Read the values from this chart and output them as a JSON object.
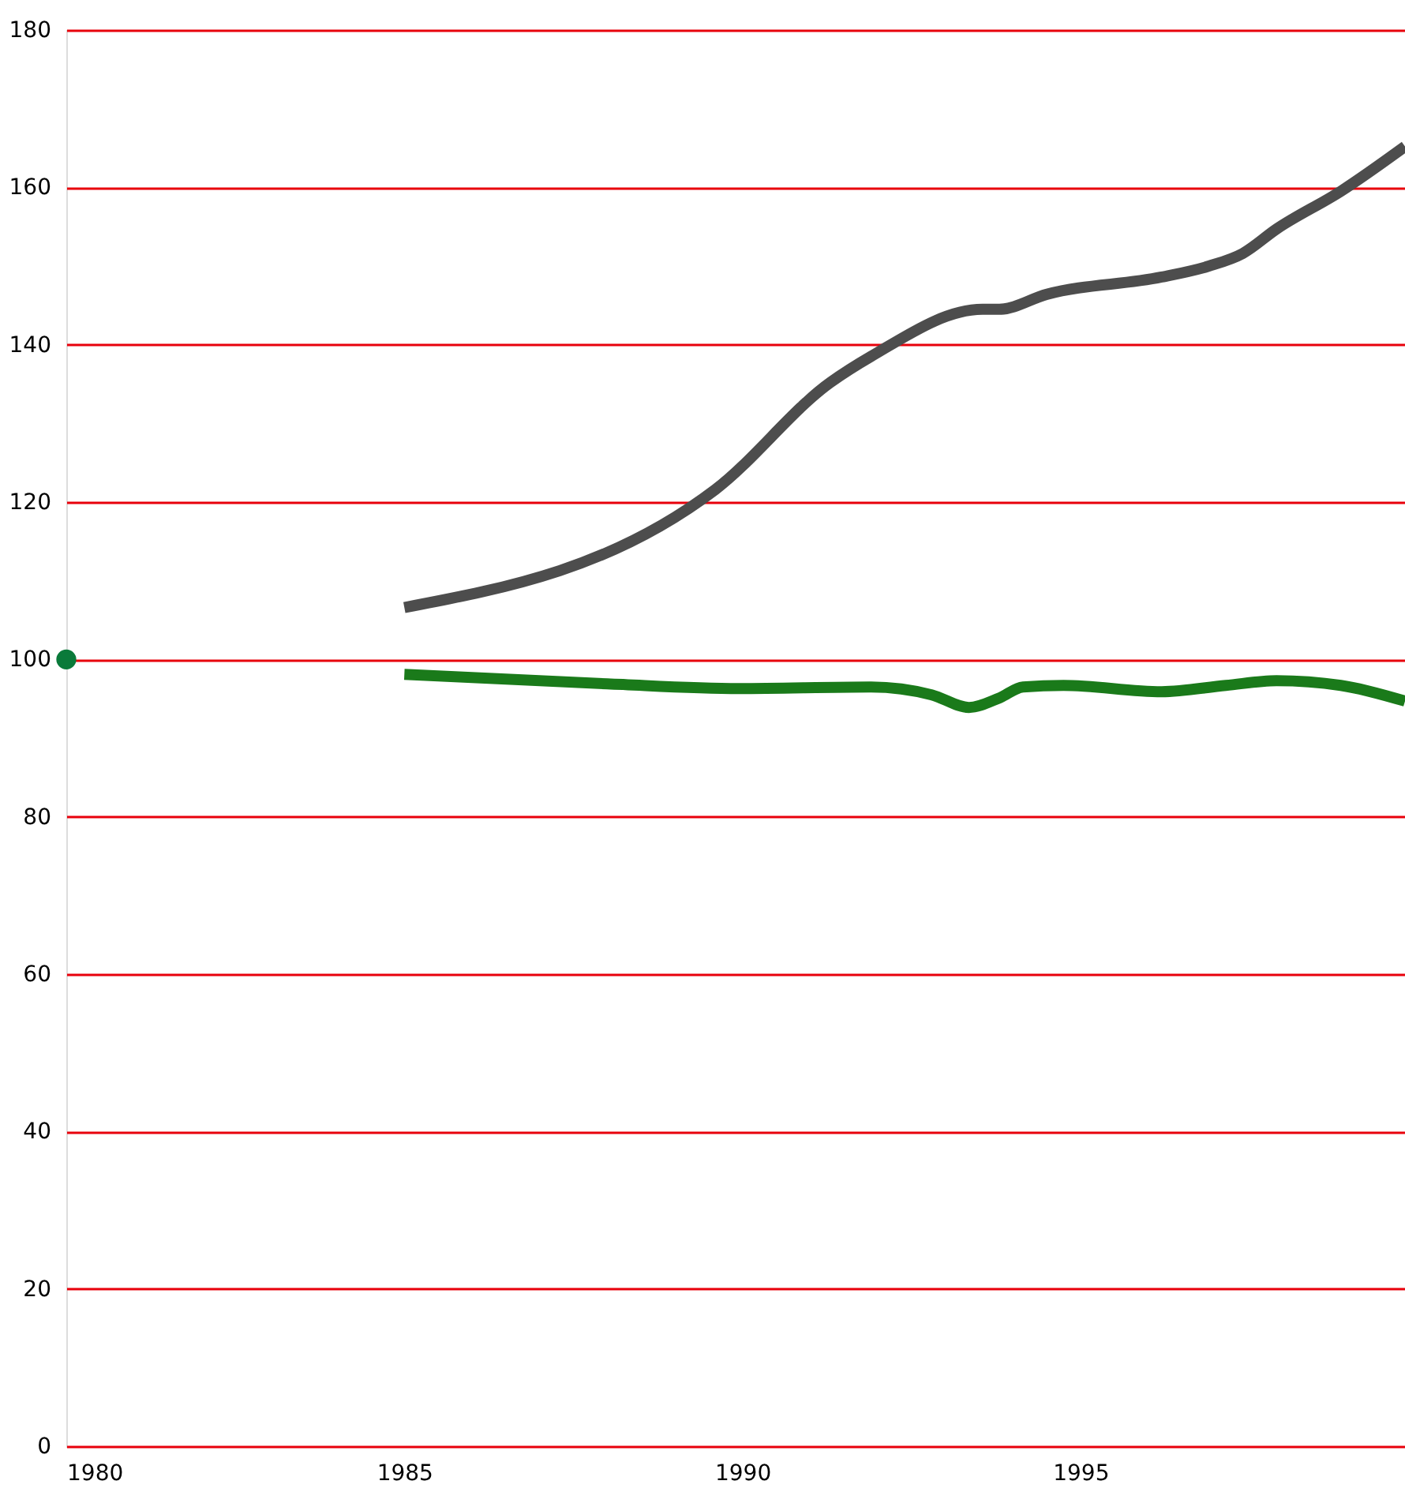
{
  "chart_data": {
    "type": "line",
    "xlim": [
      1980,
      1999.8
    ],
    "xticks": [
      1980,
      1985,
      1990,
      1995
    ],
    "ylim": [
      0,
      180
    ],
    "yticks": [
      0,
      20,
      40,
      60,
      80,
      100,
      120,
      140,
      160,
      180
    ],
    "grid": "y",
    "marker": "none",
    "line_style": "solid",
    "series": [
      {
        "color": "#4d4d4d",
        "x": [
          1985,
          1989.6,
          1991.3,
          1991.9,
          1993.55,
          1993.8,
          1994.5,
          1996.2,
          1996.9,
          1997.4,
          1997.9,
          1998.85,
          1999.8
        ],
        "values": [
          106.6,
          121.6,
          135.2,
          138.5,
          144.5,
          144.5,
          146.4,
          148.6,
          150,
          151.6,
          154.7,
          159.5,
          165.2
        ]
      },
      {
        "color": "#1a7a1a",
        "x": [
          1985,
          1988,
          1989.95,
          1991.9,
          1992.8,
          1993.35,
          1993.8,
          1994.15,
          1994.75,
          1996.2,
          1997.15,
          1997.9,
          1998.85,
          1999.8
        ],
        "values": [
          98.1,
          96.9,
          96.3,
          96.5,
          95.5,
          93.9,
          95.1,
          96.5,
          96.7,
          95.9,
          96.7,
          97.3,
          96.7,
          94.7
        ]
      },
      {
        "type": "scatter",
        "marker": "circle",
        "color": "#0a7a3a",
        "x": [
          1980
        ],
        "values": [
          100
        ]
      }
    ]
  }
}
